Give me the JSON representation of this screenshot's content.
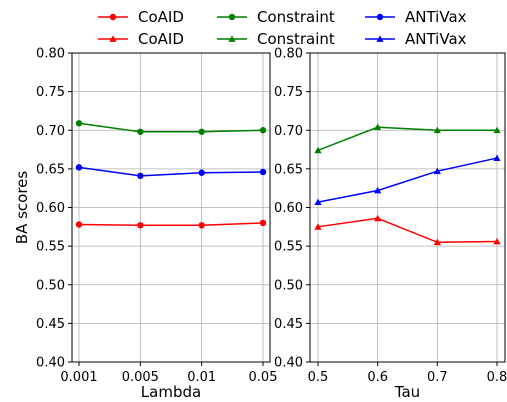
{
  "legend": {
    "entries": [
      {
        "label": "CoAID",
        "color": "#ff0000",
        "marker": "circle"
      },
      {
        "label": "Constraint",
        "color": "#008000",
        "marker": "circle"
      },
      {
        "label": "ANTiVax",
        "color": "#0000ff",
        "marker": "circle"
      },
      {
        "label": "CoAID",
        "color": "#ff0000",
        "marker": "triangle"
      },
      {
        "label": "Constraint",
        "color": "#008000",
        "marker": "triangle"
      },
      {
        "label": "ANTiVax",
        "color": "#0000ff",
        "marker": "triangle"
      }
    ],
    "placement": "top-center"
  },
  "chart_data": [
    {
      "type": "line",
      "xlabel": "Lambda",
      "ylabel": "BA scores",
      "categories": [
        "0.001",
        "0.005",
        "0.01",
        "0.05"
      ],
      "ylim": [
        0.4,
        0.8
      ],
      "yticks": [
        "0.40",
        "0.45",
        "0.50",
        "0.55",
        "0.60",
        "0.65",
        "0.70",
        "0.75",
        "0.80"
      ],
      "grid": true,
      "marker": "circle",
      "series": [
        {
          "name": "CoAID",
          "color": "#ff0000",
          "values": [
            0.578,
            0.577,
            0.577,
            0.58
          ]
        },
        {
          "name": "Constraint",
          "color": "#008000",
          "values": [
            0.709,
            0.698,
            0.698,
            0.7
          ]
        },
        {
          "name": "ANTiVax",
          "color": "#0000ff",
          "values": [
            0.652,
            0.641,
            0.645,
            0.646
          ]
        }
      ]
    },
    {
      "type": "line",
      "xlabel": "Tau",
      "ylabel": "",
      "categories": [
        "0.5",
        "0.6",
        "0.7",
        "0.8"
      ],
      "ylim": [
        0.4,
        0.8
      ],
      "yticks": [
        "0.40",
        "0.45",
        "0.50",
        "0.55",
        "0.60",
        "0.65",
        "0.70",
        "0.75",
        "0.80"
      ],
      "grid": true,
      "marker": "triangle",
      "series": [
        {
          "name": "CoAID",
          "color": "#ff0000",
          "values": [
            0.575,
            0.586,
            0.555,
            0.556
          ]
        },
        {
          "name": "Constraint",
          "color": "#008000",
          "values": [
            0.674,
            0.704,
            0.7,
            0.7
          ]
        },
        {
          "name": "ANTiVax",
          "color": "#0000ff",
          "values": [
            0.607,
            0.622,
            0.647,
            0.664
          ]
        }
      ]
    }
  ]
}
